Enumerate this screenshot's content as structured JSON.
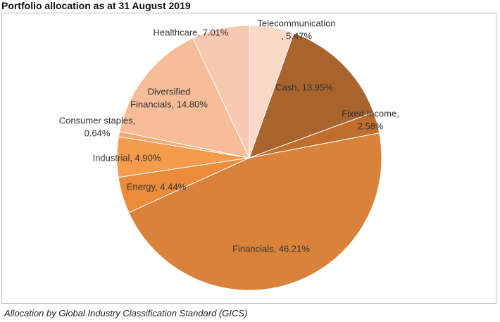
{
  "chart_data": {
    "type": "pie",
    "title": "Portfolio allocation as at 31 August 2019",
    "caption": "Allocation by Global Industry Classification Standard (GICS)",
    "legend": "none",
    "slices": [
      {
        "name": "Telecommunication",
        "value": 5.47,
        "label_lines": [
          "Telecommunication",
          ", 5.47%"
        ],
        "color": "#fbd9c8"
      },
      {
        "name": "Cash",
        "value": 13.95,
        "label_lines": [
          "Cash, 13.95%"
        ],
        "color": "#a8642c"
      },
      {
        "name": "Fixed Income",
        "value": 2.58,
        "label_lines": [
          "Fixed Income,",
          "2.58%"
        ],
        "color": "#c06e2c"
      },
      {
        "name": "Financials",
        "value": 46.21,
        "label_lines": [
          "Financials, 46.21%"
        ],
        "color": "#d8823c"
      },
      {
        "name": "Energy",
        "value": 4.44,
        "label_lines": [
          "Energy, 4.44%"
        ],
        "color": "#ec8c3a"
      },
      {
        "name": "Industrial",
        "value": 4.9,
        "label_lines": [
          "Industrial, 4.90%"
        ],
        "color": "#f59b4c"
      },
      {
        "name": "Consumer staples",
        "value": 0.64,
        "label_lines": [
          "Consumer staples,",
          "0.64%"
        ],
        "color": "#f7a872"
      },
      {
        "name": "Diversified Financials",
        "value": 14.8,
        "label_lines": [
          "Diversified",
          "Financials, 14.80%"
        ],
        "color": "#f7bc98"
      },
      {
        "name": "Healthcare",
        "value": 7.01,
        "label_lines": [
          "Healthcare, 7.01%"
        ],
        "color": "#f9c8b0"
      }
    ]
  }
}
